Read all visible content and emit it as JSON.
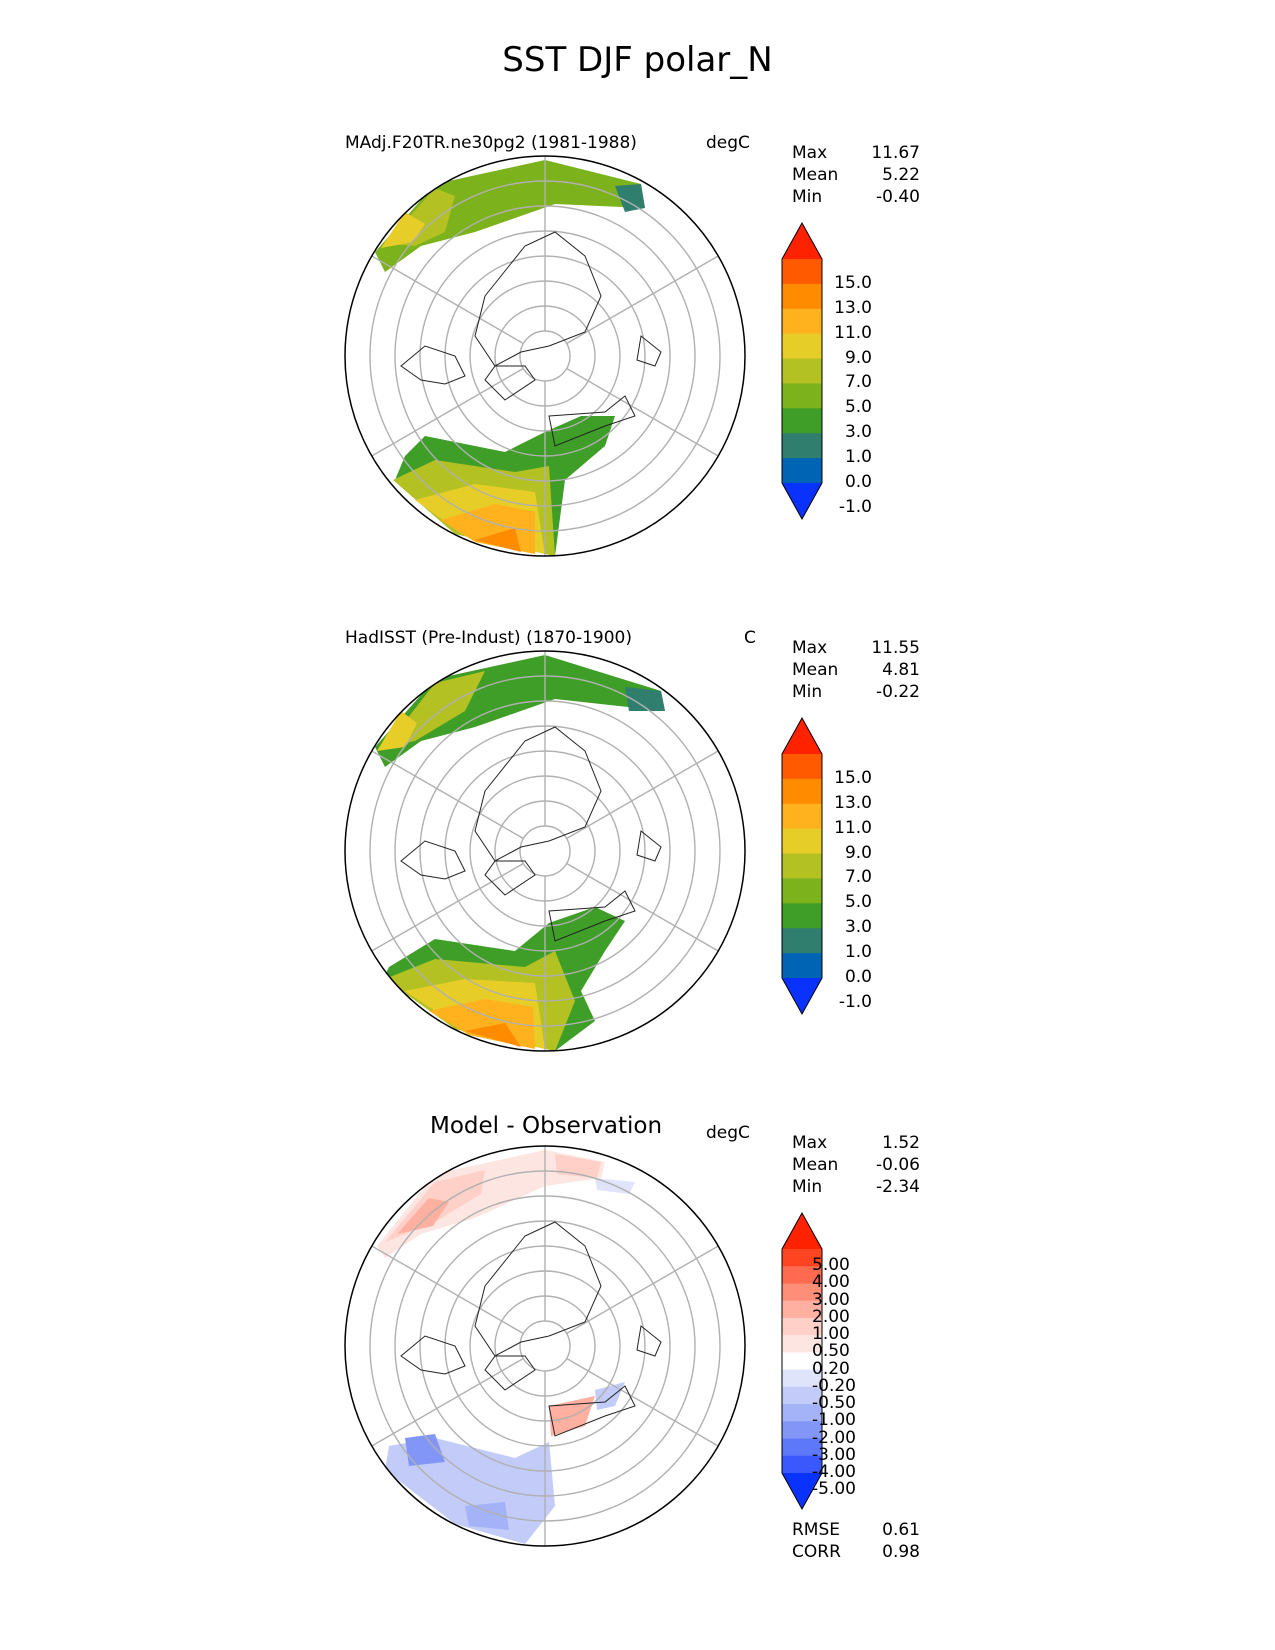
{
  "title": "SST DJF polar_N",
  "panels": [
    {
      "title": "MAdj.F20TR.ne30pg2 (1981-1988)",
      "units": "degC",
      "stats": [
        {
          "label": "Max",
          "value": "11.67"
        },
        {
          "label": "Mean",
          "value": "5.22"
        },
        {
          "label": "Min",
          "value": "-0.40"
        }
      ],
      "colorbar": {
        "levels": [
          "15.0",
          "13.0",
          "11.0",
          "9.0",
          "7.0",
          "5.0",
          "3.0",
          "1.0",
          "0.0",
          "-1.0"
        ],
        "colors": [
          "#ff2200",
          "#ff5a00",
          "#ff8c00",
          "#ffb21e",
          "#e7cd27",
          "#b3c123",
          "#7cb21c",
          "#3e9e27",
          "#2f7e6e",
          "#0064b4",
          "#0a32ff"
        ]
      }
    },
    {
      "title": "HadISST (Pre-Indust) (1870-1900)",
      "units": "C",
      "stats": [
        {
          "label": "Max",
          "value": "11.55"
        },
        {
          "label": "Mean",
          "value": "4.81"
        },
        {
          "label": "Min",
          "value": "-0.22"
        }
      ],
      "colorbar": {
        "levels": [
          "15.0",
          "13.0",
          "11.0",
          "9.0",
          "7.0",
          "5.0",
          "3.0",
          "1.0",
          "0.0",
          "-1.0"
        ],
        "colors": [
          "#ff2200",
          "#ff5a00",
          "#ff8c00",
          "#ffb21e",
          "#e7cd27",
          "#b3c123",
          "#7cb21c",
          "#3e9e27",
          "#2f7e6e",
          "#0064b4",
          "#0a32ff"
        ]
      }
    },
    {
      "title": "Model - Observation",
      "units": "degC",
      "stats": [
        {
          "label": "Max",
          "value": "1.52"
        },
        {
          "label": "Mean",
          "value": "-0.06"
        },
        {
          "label": "Min",
          "value": "-2.34"
        }
      ],
      "colorbar": {
        "levels": [
          "5.00",
          "4.00",
          "3.00",
          "2.00",
          "1.00",
          "0.50",
          "0.20",
          "-0.20",
          "-0.50",
          "-1.00",
          "-2.00",
          "-3.00",
          "-4.00",
          "-5.00"
        ],
        "colors": [
          "#ff2200",
          "#ff4422",
          "#ff6a50",
          "#ff8e78",
          "#ffb0a0",
          "#ffd0c8",
          "#fde6e2",
          "#ffffff",
          "#dfe4fb",
          "#c3ccf8",
          "#a4b2f8",
          "#8296f8",
          "#5e78fa",
          "#3a58fc",
          "#0a32ff"
        ]
      },
      "metrics": [
        {
          "label": "RMSE",
          "value": "0.61"
        },
        {
          "label": "CORR",
          "value": "0.98"
        }
      ]
    }
  ],
  "chart_data": [
    {
      "type": "heatmap",
      "title": "MAdj.F20TR.ne30pg2 (1981-1988)",
      "units": "degC",
      "projection": "north polar stereographic",
      "summary": {
        "max": 11.67,
        "mean": 5.22,
        "min": -0.4
      },
      "levels": [
        -1.0,
        0.0,
        1.0,
        3.0,
        5.0,
        7.0,
        9.0,
        11.0,
        13.0,
        15.0
      ],
      "legend": "right"
    },
    {
      "type": "heatmap",
      "title": "HadISST (Pre-Indust) (1870-1900)",
      "units": "C",
      "projection": "north polar stereographic",
      "summary": {
        "max": 11.55,
        "mean": 4.81,
        "min": -0.22
      },
      "levels": [
        -1.0,
        0.0,
        1.0,
        3.0,
        5.0,
        7.0,
        9.0,
        11.0,
        13.0,
        15.0
      ],
      "legend": "right"
    },
    {
      "type": "heatmap",
      "title": "Model - Observation",
      "units": "degC",
      "projection": "north polar stereographic",
      "summary": {
        "max": 1.52,
        "mean": -0.06,
        "min": -2.34,
        "rmse": 0.61,
        "corr": 0.98
      },
      "levels": [
        -5.0,
        -4.0,
        -3.0,
        -2.0,
        -1.0,
        -0.5,
        -0.2,
        0.2,
        0.5,
        1.0,
        2.0,
        3.0,
        4.0,
        5.0
      ],
      "legend": "right"
    }
  ]
}
